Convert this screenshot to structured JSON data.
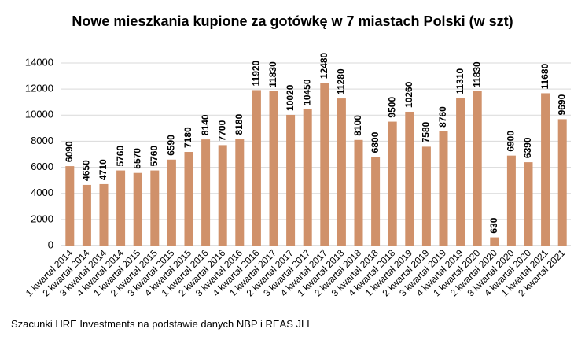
{
  "chart_data": {
    "type": "bar",
    "title": "Nowe mieszkania kupione za gotówkę w 7 miastach Polski (w szt)",
    "note": "Szacunki HRE Investments na podstawie danych NBP i REAS JLL",
    "categories": [
      "1 kwartał 2014",
      "2 kwartał 2014",
      "3 kwartał 2014",
      "4 kwartał 2014",
      "1 kwartał 2015",
      "2 kwartał 2015",
      "3 kwartał 2015",
      "4 kwartał 2015",
      "1 kwartał 2016",
      "2 kwartał 2016",
      "3 kwartał 2016",
      "4 kwartał 2016",
      "1 kwartał 2017",
      "2 kwartał 2017",
      "3 kwartał 2017",
      "4 kwartał 2017",
      "1 kwartał 2018",
      "2 kwartał 2018",
      "3 kwartał 2018",
      "4 kwartał 2018",
      "1 kwartał 2019",
      "2 kwartał 2019",
      "3 kwartał 2019",
      "4 kwartał 2019",
      "1 kwartał 2020",
      "2 kwartał 2020",
      "3 kwartał 2020",
      "4 kwartał 2020",
      "1 kwartał 2021",
      "2 kwartał 2021"
    ],
    "values": [
      6090,
      4650,
      4710,
      5760,
      5570,
      5760,
      6590,
      7180,
      8140,
      7700,
      8180,
      11920,
      11830,
      10020,
      10450,
      12480,
      11280,
      8100,
      6800,
      9500,
      10260,
      7580,
      8760,
      11310,
      11830,
      630,
      6900,
      6390,
      11680,
      9690
    ],
    "color": "#d0916a",
    "ylim": [
      0,
      14000
    ],
    "yticks": [
      0,
      2000,
      4000,
      6000,
      8000,
      10000,
      12000,
      14000
    ],
    "grid": true
  }
}
